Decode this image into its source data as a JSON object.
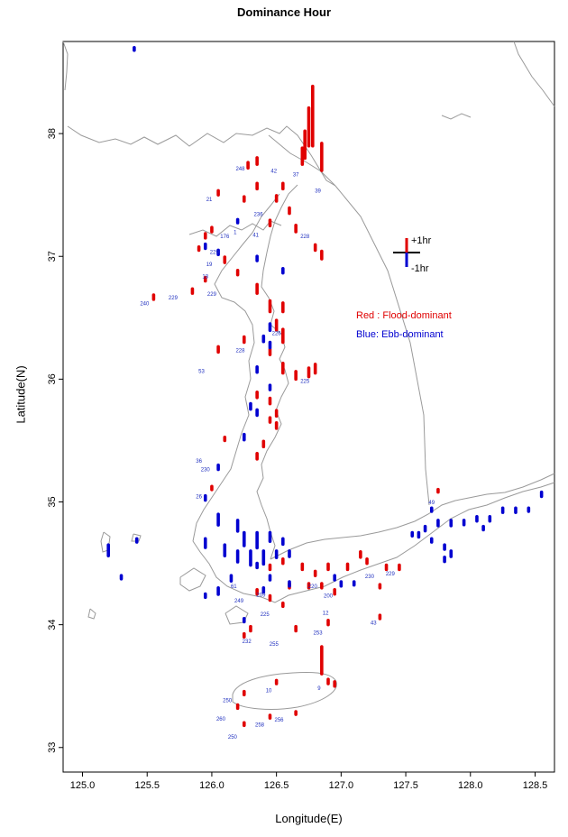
{
  "chart_data": {
    "type": "map",
    "title": "Dominance Hour",
    "xlabel": "Longitude(E)",
    "ylabel": "Latitude(N)",
    "xlim": [
      124.85,
      128.65
    ],
    "ylim": [
      32.8,
      38.75
    ],
    "xticks": [
      "125.0",
      "125.5",
      "126.0",
      "126.5",
      "127.0",
      "127.5",
      "128.0",
      "128.5"
    ],
    "xtick_values": [
      125.0,
      125.5,
      126.0,
      126.5,
      127.0,
      127.5,
      128.0,
      128.5
    ],
    "yticks": [
      "33",
      "34",
      "35",
      "36",
      "37",
      "38"
    ],
    "ytick_values": [
      33,
      34,
      35,
      36,
      37,
      38
    ],
    "colors": {
      "flood": "#e00000",
      "ebb": "#0000d0",
      "coast": "#9a9a9a"
    },
    "scale": {
      "up_label": "+1hr",
      "down_label": "-1hr",
      "lon": 127.5,
      "lat": 37.0,
      "hours": 1
    },
    "legend": {
      "red_text": "Red : Flood-dominant",
      "blue_text": "Blue: Ebb-dominant"
    },
    "flood_stations": [
      [
        126.78,
        37.9,
        0.55
      ],
      [
        126.75,
        37.9,
        0.35
      ],
      [
        126.72,
        37.8,
        0.25
      ],
      [
        126.7,
        37.75,
        0.15
      ],
      [
        126.85,
        37.7,
        0.25
      ],
      [
        126.35,
        37.75,
        0.06
      ],
      [
        126.28,
        37.72,
        0.05
      ],
      [
        126.55,
        37.55,
        0.05
      ],
      [
        126.5,
        37.45,
        0.05
      ],
      [
        126.35,
        37.55,
        0.05
      ],
      [
        126.25,
        37.45,
        0.04
      ],
      [
        126.05,
        37.5,
        0.04
      ],
      [
        126.6,
        37.35,
        0.05
      ],
      [
        126.45,
        37.25,
        0.05
      ],
      [
        126.65,
        37.2,
        0.06
      ],
      [
        126.8,
        37.05,
        0.05
      ],
      [
        126.85,
        36.98,
        0.07
      ],
      [
        126.0,
        37.2,
        0.04
      ],
      [
        125.95,
        37.15,
        0.04
      ],
      [
        125.9,
        37.05,
        0.03
      ],
      [
        126.1,
        36.95,
        0.05
      ],
      [
        126.2,
        36.85,
        0.04
      ],
      [
        125.95,
        36.8,
        0.03
      ],
      [
        125.85,
        36.7,
        0.04
      ],
      [
        125.55,
        36.65,
        0.04
      ],
      [
        126.35,
        36.7,
        0.08
      ],
      [
        126.45,
        36.55,
        0.1
      ],
      [
        126.55,
        36.55,
        0.08
      ],
      [
        126.5,
        36.4,
        0.09
      ],
      [
        126.55,
        36.3,
        0.12
      ],
      [
        126.45,
        36.2,
        0.05
      ],
      [
        126.05,
        36.22,
        0.05
      ],
      [
        126.25,
        36.3,
        0.05
      ],
      [
        126.55,
        36.05,
        0.09
      ],
      [
        126.65,
        36.0,
        0.07
      ],
      [
        126.75,
        36.02,
        0.08
      ],
      [
        126.8,
        36.05,
        0.08
      ],
      [
        126.35,
        35.85,
        0.05
      ],
      [
        126.45,
        35.8,
        0.05
      ],
      [
        126.5,
        35.7,
        0.05
      ],
      [
        126.45,
        35.65,
        0.04
      ],
      [
        126.4,
        35.45,
        0.05
      ],
      [
        126.35,
        35.35,
        0.05
      ],
      [
        126.5,
        35.6,
        0.05
      ],
      [
        126.1,
        35.5,
        0.03
      ],
      [
        126.0,
        35.1,
        0.03
      ],
      [
        126.45,
        34.45,
        0.04
      ],
      [
        126.55,
        34.5,
        0.04
      ],
      [
        126.7,
        34.45,
        0.05
      ],
      [
        126.8,
        34.4,
        0.04
      ],
      [
        126.9,
        34.45,
        0.05
      ],
      [
        127.05,
        34.45,
        0.05
      ],
      [
        127.15,
        34.55,
        0.05
      ],
      [
        127.2,
        34.5,
        0.04
      ],
      [
        127.35,
        34.45,
        0.04
      ],
      [
        127.45,
        34.45,
        0.04
      ],
      [
        126.95,
        34.25,
        0.04
      ],
      [
        126.85,
        34.3,
        0.04
      ],
      [
        126.75,
        34.3,
        0.04
      ],
      [
        126.6,
        34.3,
        0.04
      ],
      [
        126.55,
        34.15,
        0.03
      ],
      [
        126.45,
        34.2,
        0.04
      ],
      [
        126.35,
        34.25,
        0.04
      ],
      [
        127.3,
        34.3,
        0.03
      ],
      [
        127.3,
        34.05,
        0.03
      ],
      [
        126.9,
        34.0,
        0.04
      ],
      [
        126.65,
        33.95,
        0.04
      ],
      [
        126.3,
        33.95,
        0.04
      ],
      [
        126.25,
        33.9,
        0.03
      ],
      [
        127.75,
        35.08,
        0.02
      ],
      [
        126.85,
        33.6,
        0.25
      ],
      [
        126.9,
        33.52,
        0.04
      ],
      [
        126.95,
        33.5,
        0.04
      ],
      [
        126.5,
        33.52,
        0.03
      ],
      [
        126.25,
        33.43,
        0.03
      ],
      [
        126.2,
        33.32,
        0.03
      ],
      [
        126.45,
        33.24,
        0.02
      ],
      [
        126.65,
        33.27,
        0.02
      ],
      [
        126.25,
        33.18,
        0.02
      ]
    ],
    "ebb_stations": [
      [
        125.4,
        38.7,
        0.02
      ],
      [
        126.2,
        37.3,
        0.03
      ],
      [
        125.95,
        37.1,
        0.04
      ],
      [
        126.05,
        37.05,
        0.04
      ],
      [
        126.35,
        37.0,
        0.04
      ],
      [
        126.55,
        36.9,
        0.04
      ],
      [
        126.45,
        36.45,
        0.06
      ],
      [
        126.4,
        36.35,
        0.05
      ],
      [
        126.45,
        36.3,
        0.05
      ],
      [
        126.35,
        36.1,
        0.05
      ],
      [
        126.45,
        35.95,
        0.04
      ],
      [
        126.3,
        35.8,
        0.05
      ],
      [
        126.35,
        35.75,
        0.05
      ],
      [
        126.25,
        35.55,
        0.05
      ],
      [
        126.05,
        35.3,
        0.04
      ],
      [
        125.95,
        35.05,
        0.04
      ],
      [
        126.05,
        34.9,
        0.1
      ],
      [
        126.2,
        34.85,
        0.1
      ],
      [
        126.25,
        34.75,
        0.12
      ],
      [
        126.35,
        34.75,
        0.14
      ],
      [
        126.4,
        34.6,
        0.12
      ],
      [
        126.3,
        34.6,
        0.13
      ],
      [
        126.2,
        34.6,
        0.1
      ],
      [
        126.1,
        34.65,
        0.1
      ],
      [
        125.95,
        34.7,
        0.08
      ],
      [
        126.45,
        34.75,
        0.08
      ],
      [
        126.5,
        34.6,
        0.06
      ],
      [
        126.6,
        34.6,
        0.05
      ],
      [
        126.55,
        34.7,
        0.05
      ],
      [
        126.05,
        34.3,
        0.06
      ],
      [
        125.95,
        34.25,
        0.03
      ],
      [
        126.15,
        34.4,
        0.05
      ],
      [
        126.35,
        34.5,
        0.04
      ],
      [
        126.45,
        34.4,
        0.04
      ],
      [
        125.2,
        34.65,
        0.1
      ],
      [
        125.42,
        34.7,
        0.03
      ],
      [
        125.3,
        34.4,
        0.03
      ],
      [
        126.4,
        34.3,
        0.04
      ],
      [
        126.6,
        34.35,
        0.04
      ],
      [
        126.95,
        34.4,
        0.04
      ],
      [
        127.0,
        34.35,
        0.04
      ],
      [
        127.1,
        34.35,
        0.03
      ],
      [
        127.75,
        34.85,
        0.05
      ],
      [
        127.85,
        34.85,
        0.05
      ],
      [
        127.95,
        34.85,
        0.04
      ],
      [
        128.05,
        34.88,
        0.04
      ],
      [
        128.15,
        34.88,
        0.04
      ],
      [
        128.25,
        34.95,
        0.04
      ],
      [
        128.35,
        34.95,
        0.04
      ],
      [
        128.45,
        34.95,
        0.03
      ],
      [
        128.55,
        35.08,
        0.04
      ],
      [
        127.65,
        34.8,
        0.04
      ],
      [
        127.55,
        34.75,
        0.03
      ],
      [
        127.85,
        34.6,
        0.05
      ],
      [
        127.8,
        34.55,
        0.04
      ],
      [
        127.7,
        34.7,
        0.03
      ],
      [
        127.6,
        34.75,
        0.04
      ],
      [
        127.8,
        34.65,
        0.04
      ],
      [
        128.1,
        34.8,
        0.03
      ],
      [
        127.7,
        34.95,
        0.03
      ],
      [
        126.25,
        34.05,
        0.03
      ]
    ],
    "station_labels": [
      [
        "21",
        125.98,
        37.45
      ],
      [
        "248",
        126.22,
        37.7
      ],
      [
        "42",
        126.48,
        37.68
      ],
      [
        "37",
        126.65,
        37.65
      ],
      [
        "39",
        126.82,
        37.52
      ],
      [
        "236",
        126.36,
        37.33
      ],
      [
        "1",
        126.18,
        37.18
      ],
      [
        "176",
        126.1,
        37.15
      ],
      [
        "41",
        126.34,
        37.16
      ],
      [
        "228",
        126.72,
        37.15
      ],
      [
        "229",
        126.02,
        37.02
      ],
      [
        "19",
        125.98,
        36.92
      ],
      [
        "18",
        125.95,
        36.82
      ],
      [
        "229",
        125.7,
        36.65
      ],
      [
        "229",
        126.0,
        36.68
      ],
      [
        "240",
        125.48,
        36.6
      ],
      [
        "228",
        126.22,
        36.22
      ],
      [
        "53",
        125.92,
        36.05
      ],
      [
        "226",
        126.5,
        36.36
      ],
      [
        "225",
        126.72,
        35.97
      ],
      [
        "36",
        125.9,
        35.32
      ],
      [
        "230",
        125.95,
        35.25
      ],
      [
        "26",
        125.9,
        35.03
      ],
      [
        "49",
        127.7,
        34.98
      ],
      [
        "43",
        127.25,
        34.0
      ],
      [
        "12",
        126.88,
        34.08
      ],
      [
        "253",
        126.82,
        33.92
      ],
      [
        "255",
        126.48,
        33.83
      ],
      [
        "232",
        126.27,
        33.85
      ],
      [
        "249",
        126.21,
        34.18
      ],
      [
        "225",
        126.41,
        34.07
      ],
      [
        "10",
        126.44,
        33.45
      ],
      [
        "9",
        126.83,
        33.47
      ],
      [
        "250",
        126.12,
        33.37
      ],
      [
        "260",
        126.07,
        33.22
      ],
      [
        "258",
        126.37,
        33.17
      ],
      [
        "256",
        126.52,
        33.21
      ],
      [
        "250",
        126.16,
        33.07
      ],
      [
        "220",
        126.78,
        34.3
      ],
      [
        "200",
        126.9,
        34.22
      ],
      [
        "230",
        127.22,
        34.38
      ],
      [
        "229",
        127.38,
        34.4
      ],
      [
        "61",
        126.17,
        34.3
      ],
      [
        "209",
        126.38,
        34.23
      ]
    ]
  }
}
